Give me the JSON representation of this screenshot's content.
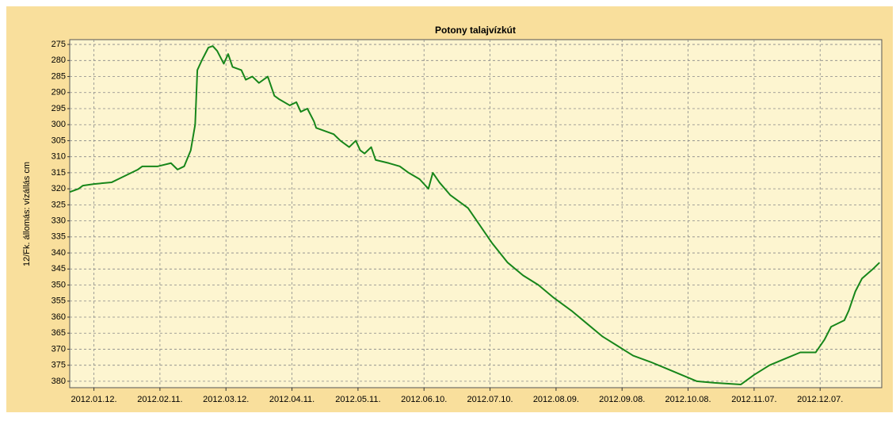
{
  "chart_data": {
    "type": "line",
    "title": "Potony talajvízkút",
    "y_label": "12/Fk. állomás: vízállás cm",
    "x": [
      0,
      4,
      6,
      11,
      19,
      22,
      31,
      33,
      40,
      46,
      49,
      52,
      55,
      57,
      58,
      60,
      63,
      65,
      67,
      70,
      72,
      74,
      78,
      80,
      83,
      86,
      90,
      93,
      95,
      100,
      103,
      105,
      108,
      111,
      112,
      116,
      120,
      123,
      127,
      130,
      132,
      134,
      137,
      139,
      145,
      150,
      154,
      159,
      163,
      165,
      168,
      173,
      181,
      184,
      192,
      199,
      206,
      213,
      220,
      228,
      235,
      242,
      249,
      256,
      264,
      271,
      278,
      285,
      293,
      305,
      311,
      318,
      325,
      332,
      339,
      343,
      346,
      352,
      354,
      357,
      360,
      365,
      368
    ],
    "series": [
      {
        "name": "12/Fk. állomás: vízállás cm",
        "color": "#17861a",
        "values": [
          321,
          320,
          319,
          318.5,
          318,
          317,
          314,
          313,
          313,
          312,
          314,
          313,
          308,
          300,
          283,
          280,
          276,
          275.5,
          277,
          281,
          278,
          282,
          283,
          286,
          285,
          287,
          285,
          291,
          292,
          294,
          293,
          296,
          295,
          299,
          301,
          302,
          303,
          305,
          307,
          305,
          308,
          309,
          307,
          311,
          312,
          313,
          315,
          317,
          320,
          315,
          318,
          322,
          326,
          329,
          337,
          343,
          347,
          350,
          354,
          358,
          362,
          366,
          369,
          372,
          374,
          376,
          378,
          380,
          380.5,
          381,
          378,
          375,
          373,
          371,
          371,
          367,
          363,
          361,
          358,
          352,
          348,
          345,
          343
        ]
      }
    ],
    "xlim": [
      0,
      369
    ],
    "xticks": [
      {
        "value": 11,
        "label": "2012.01.12."
      },
      {
        "value": 41,
        "label": "2012.02.11."
      },
      {
        "value": 71,
        "label": "2012.03.12."
      },
      {
        "value": 101,
        "label": "2012.04.11."
      },
      {
        "value": 131,
        "label": "2012.05.11."
      },
      {
        "value": 161,
        "label": "2012.06.10."
      },
      {
        "value": 191,
        "label": "2012.07.10."
      },
      {
        "value": 221,
        "label": "2012.08.09."
      },
      {
        "value": 251,
        "label": "2012.09.08."
      },
      {
        "value": 281,
        "label": "2012.10.08."
      },
      {
        "value": 311,
        "label": "2012.11.07."
      },
      {
        "value": 341,
        "label": "2012.12.07."
      }
    ],
    "ylim": [
      382,
      273.5
    ],
    "yticks": [
      275,
      280,
      285,
      290,
      295,
      300,
      305,
      310,
      315,
      320,
      325,
      330,
      335,
      340,
      345,
      350,
      355,
      360,
      365,
      370,
      375,
      380
    ],
    "grid": true
  }
}
